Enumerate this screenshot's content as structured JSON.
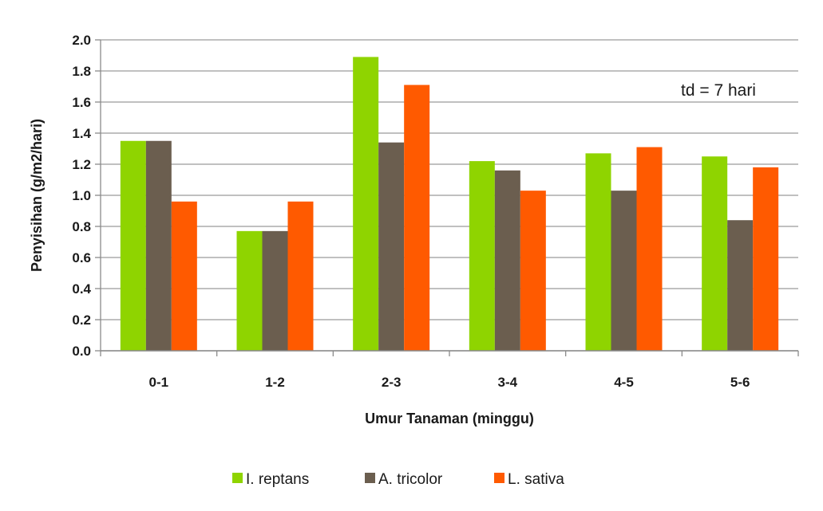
{
  "chart_data": {
    "type": "bar",
    "title": "",
    "xlabel": "Umur Tanaman (minggu)",
    "ylabel": "Penyisihan (g/m2/hari)",
    "ylim": [
      0,
      2.0
    ],
    "yticks": [
      "0.0",
      "0.2",
      "0.4",
      "0.6",
      "0.8",
      "1.0",
      "1.2",
      "1.4",
      "1.6",
      "1.8",
      "2.0"
    ],
    "grid": true,
    "legend_position": "bottom",
    "categories": [
      "0-1",
      "1-2",
      "2-3",
      "3-4",
      "4-5",
      "5-6"
    ],
    "series": [
      {
        "name": "I. reptans",
        "color": "#8fd400",
        "values": [
          1.35,
          0.77,
          1.89,
          1.22,
          1.27,
          1.25
        ]
      },
      {
        "name": "A. tricolor",
        "color": "#6b5e4f",
        "values": [
          1.35,
          0.77,
          1.34,
          1.16,
          1.03,
          0.84
        ]
      },
      {
        "name": "L. sativa",
        "color": "#ff5a00",
        "values": [
          0.96,
          0.96,
          1.71,
          1.03,
          1.31,
          1.18
        ]
      }
    ],
    "annotation": "td = 7 hari"
  }
}
